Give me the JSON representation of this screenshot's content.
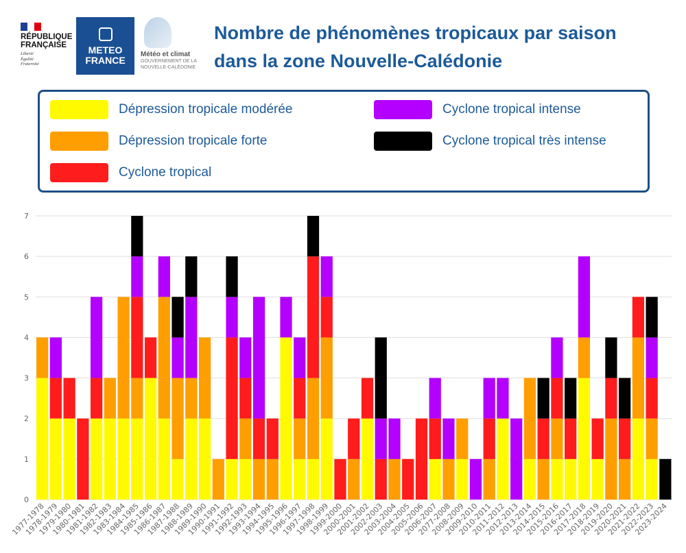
{
  "header": {
    "title": "Nombre de phénomènes tropicaux par saison dans la zone Nouvelle-Calédonie",
    "logos": {
      "republique": {
        "name": "RÉPUBLIQUE FRANÇAISE",
        "motto": [
          "Liberté",
          "Égalité",
          "Fraternité"
        ]
      },
      "meteo_france": {
        "name": [
          "METEO",
          "FRANCE"
        ]
      },
      "meteo_climat": {
        "name": "Météo et climat",
        "sub": [
          "GOUVERNEMENT DE LA",
          "NOUVELLE-CALÉDONIE"
        ]
      }
    }
  },
  "chart_data": {
    "type": "bar",
    "stacked": true,
    "grid": true,
    "legend_position": "top",
    "ylim": [
      0,
      7
    ],
    "yticks": [
      0,
      1,
      2,
      3,
      4,
      5,
      6,
      7
    ],
    "categories": [
      "1977-1978",
      "1978-1979",
      "1979-1980",
      "1980-1981",
      "1981-1982",
      "1982-1983",
      "1983-1984",
      "1984-1985",
      "1985-1986",
      "1986-1987",
      "1987-1988",
      "1988-1989",
      "1989-1990",
      "1990-1991",
      "1991-1992",
      "1992-1993",
      "1993-1994",
      "1994-1995",
      "1995-1996",
      "1996-1997",
      "1997-1998",
      "1998-1999",
      "1999-2000",
      "2000-2001",
      "2001-2002",
      "2002-2003",
      "2003-2004",
      "2004-2005",
      "2005-2006",
      "2006-2007",
      "2077-2008",
      "2008-2009",
      "2009-2010",
      "2010-2011",
      "2011-2012",
      "2012-2013",
      "2013-2014",
      "2014-2015",
      "2015-2016",
      "2016-2017",
      "2017-2018",
      "2018-2019",
      "2019-2020",
      "2020-2021",
      "2021-2022",
      "2022-2023",
      "2023-2024"
    ],
    "series": [
      {
        "name": "Dépression tropicale modérée",
        "color": "#fffa00",
        "values": [
          3,
          2,
          2,
          0,
          2,
          2,
          2,
          2,
          3,
          2,
          1,
          2,
          2,
          0,
          1,
          1,
          0,
          0,
          4,
          1,
          1,
          2,
          0,
          0,
          2,
          0,
          0,
          0,
          0,
          1,
          0,
          1,
          0,
          0,
          2,
          0,
          1,
          0,
          1,
          1,
          3,
          1,
          0,
          0,
          2,
          1,
          0
        ]
      },
      {
        "name": "Dépression tropicale forte",
        "color": "#ff9e00",
        "values": [
          1,
          0,
          0,
          0,
          0,
          1,
          3,
          1,
          0,
          3,
          2,
          1,
          2,
          1,
          0,
          1,
          1,
          1,
          0,
          1,
          2,
          2,
          0,
          1,
          0,
          0,
          1,
          0,
          0,
          0,
          1,
          1,
          0,
          1,
          0,
          0,
          2,
          1,
          1,
          0,
          1,
          0,
          2,
          1,
          2,
          1,
          0
        ]
      },
      {
        "name": "Cyclone tropical",
        "color": "#ff1c1c",
        "values": [
          0,
          1,
          1,
          2,
          1,
          0,
          0,
          2,
          1,
          0,
          0,
          0,
          0,
          0,
          3,
          1,
          1,
          1,
          0,
          1,
          3,
          1,
          1,
          1,
          1,
          1,
          0,
          1,
          2,
          1,
          0,
          0,
          0,
          1,
          0,
          0,
          0,
          1,
          1,
          1,
          0,
          1,
          1,
          1,
          1,
          1,
          0
        ]
      },
      {
        "name": "Cyclone tropical intense",
        "color": "#b300ff",
        "values": [
          0,
          1,
          0,
          0,
          2,
          0,
          0,
          1,
          0,
          1,
          1,
          2,
          0,
          0,
          1,
          1,
          3,
          0,
          1,
          1,
          0,
          1,
          0,
          0,
          0,
          1,
          1,
          0,
          0,
          1,
          1,
          0,
          1,
          1,
          1,
          2,
          0,
          0,
          1,
          0,
          2,
          0,
          0,
          0,
          0,
          1,
          0
        ]
      },
      {
        "name": "Cyclone tropical très intense",
        "color": "#000000",
        "values": [
          0,
          0,
          0,
          0,
          0,
          0,
          0,
          1,
          0,
          0,
          1,
          1,
          0,
          0,
          1,
          0,
          0,
          0,
          0,
          0,
          1,
          0,
          0,
          0,
          0,
          2,
          0,
          0,
          0,
          0,
          0,
          0,
          0,
          0,
          0,
          0,
          0,
          1,
          0,
          1,
          0,
          0,
          1,
          1,
          0,
          1,
          1
        ]
      }
    ]
  }
}
